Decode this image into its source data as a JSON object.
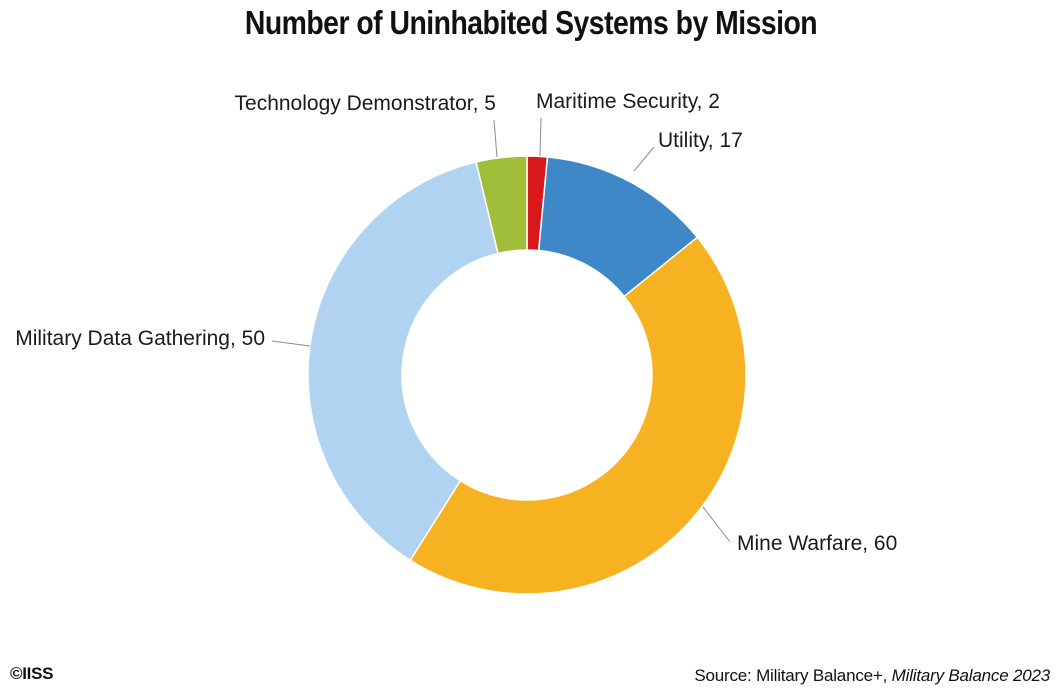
{
  "chart_data": {
    "type": "pie",
    "variant": "donut",
    "title": "Number of Uninhabited Systems by Mission",
    "slices": [
      {
        "label": "Maritime Security",
        "value": 2,
        "color": "#d7191c"
      },
      {
        "label": "Utility",
        "value": 17,
        "color": "#3f88c8"
      },
      {
        "label": "Mine Warfare",
        "value": 60,
        "color": "#f6b220"
      },
      {
        "label": "Military Data Gathering",
        "value": 50,
        "color": "#afd3f0"
      },
      {
        "label": "Technology Demonstrator",
        "value": 5,
        "color": "#a1be3a"
      }
    ],
    "start": "12 o'clock",
    "direction": "clockwise",
    "legend": "none"
  },
  "footer": {
    "copyright": "©IISS",
    "source_prefix": "Source: Military Balance+, ",
    "source_italic": "Military Balance 2023"
  }
}
